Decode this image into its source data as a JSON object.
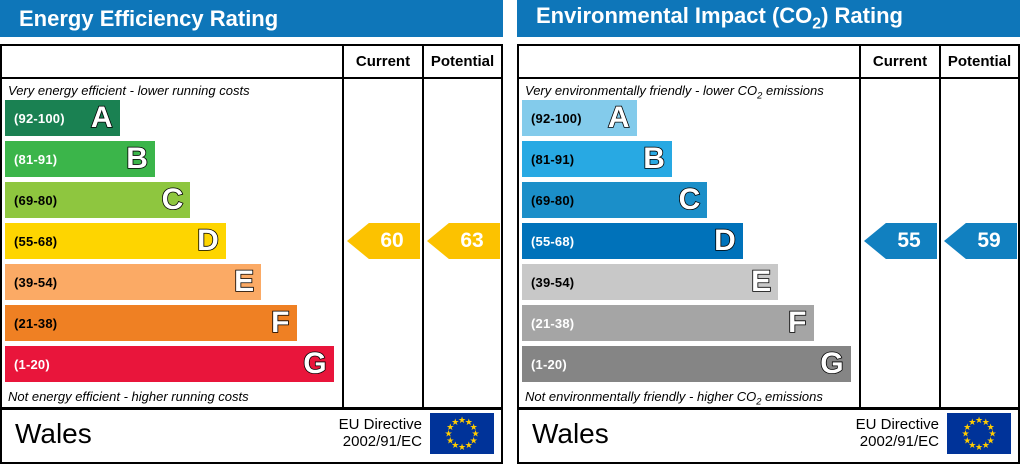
{
  "colors": {
    "header_bg": "#0e76b9",
    "border": "#000000",
    "flag_bg": "#003399",
    "flag_stars": "#ffcc00"
  },
  "chart_data": [
    {
      "type": "bar",
      "title": "Energy Efficiency Rating",
      "columns": [
        "Current",
        "Potential"
      ],
      "caption_top": "Very energy efficient - lower running costs",
      "caption_bottom": "Not energy efficient - higher running costs",
      "bands": [
        {
          "letter": "A",
          "range_label": "(92-100)",
          "range": [
            92,
            100
          ],
          "color": "#1a8152",
          "label_color": "#ffffff"
        },
        {
          "letter": "B",
          "range_label": "(81-91)",
          "range": [
            81,
            91
          ],
          "color": "#3bb54a",
          "label_color": "#ffffff"
        },
        {
          "letter": "C",
          "range_label": "(69-80)",
          "range": [
            69,
            80
          ],
          "color": "#8ec63f",
          "label_color": "#000000"
        },
        {
          "letter": "D",
          "range_label": "(55-68)",
          "range": [
            55,
            68
          ],
          "color": "#fed500",
          "label_color": "#000000"
        },
        {
          "letter": "E",
          "range_label": "(39-54)",
          "range": [
            39,
            54
          ],
          "color": "#fbaa65",
          "label_color": "#000000"
        },
        {
          "letter": "F",
          "range_label": "(21-38)",
          "range": [
            21,
            38
          ],
          "color": "#ef8023",
          "label_color": "#000000"
        },
        {
          "letter": "G",
          "range_label": "(1-20)",
          "range": [
            1,
            20
          ],
          "color": "#e9153b",
          "label_color": "#ffffff"
        }
      ],
      "current": {
        "value": 60,
        "band": "D",
        "color": "#fcc200"
      },
      "potential": {
        "value": 63,
        "band": "D",
        "color": "#fcc200"
      },
      "footer": {
        "region": "Wales",
        "directive": [
          "EU Directive",
          "2002/91/EC"
        ]
      }
    },
    {
      "type": "bar",
      "title": "Environmental Impact (CO₂) Rating",
      "columns": [
        "Current",
        "Potential"
      ],
      "caption_top": "Very environmentally friendly - lower CO₂ emissions",
      "caption_bottom": "Not environmentally friendly - higher CO₂ emissions",
      "bands": [
        {
          "letter": "A",
          "range_label": "(92-100)",
          "range": [
            92,
            100
          ],
          "color": "#83cbeb",
          "label_color": "#000000"
        },
        {
          "letter": "B",
          "range_label": "(81-91)",
          "range": [
            81,
            91
          ],
          "color": "#28a9e3",
          "label_color": "#000000"
        },
        {
          "letter": "C",
          "range_label": "(69-80)",
          "range": [
            69,
            80
          ],
          "color": "#1b8fc9",
          "label_color": "#000000"
        },
        {
          "letter": "D",
          "range_label": "(55-68)",
          "range": [
            55,
            68
          ],
          "color": "#0072ba",
          "label_color": "#ffffff"
        },
        {
          "letter": "E",
          "range_label": "(39-54)",
          "range": [
            39,
            54
          ],
          "color": "#c8c8c8",
          "label_color": "#000000"
        },
        {
          "letter": "F",
          "range_label": "(21-38)",
          "range": [
            21,
            38
          ],
          "color": "#a5a5a5",
          "label_color": "#ffffff"
        },
        {
          "letter": "G",
          "range_label": "(1-20)",
          "range": [
            1,
            20
          ],
          "color": "#858585",
          "label_color": "#ffffff"
        }
      ],
      "current": {
        "value": 55,
        "band": "D",
        "color": "#1180c0"
      },
      "potential": {
        "value": 59,
        "band": "D",
        "color": "#1180c0"
      },
      "footer": {
        "region": "Wales",
        "directive": [
          "EU Directive",
          "2002/91/EC"
        ]
      }
    }
  ]
}
